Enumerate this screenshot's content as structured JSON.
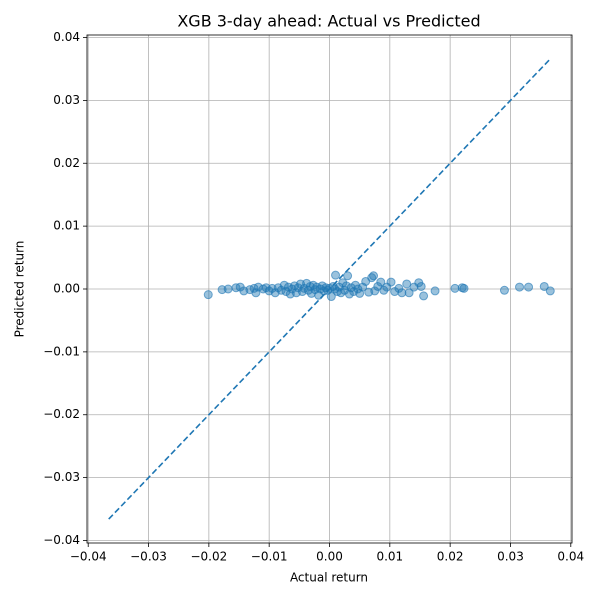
{
  "chart_data": {
    "type": "scatter",
    "title": "XGB 3-day ahead: Actual vs Predicted",
    "x_label": "Actual return",
    "y_label": "Predicted return",
    "grid": true,
    "xlim": [
      -0.0402,
      0.0402
    ],
    "ylim": [
      -0.0404,
      0.0404
    ],
    "xticks": [
      {
        "value": -0.04,
        "label": "−0.04"
      },
      {
        "value": -0.03,
        "label": "−0.03"
      },
      {
        "value": -0.02,
        "label": "−0.02"
      },
      {
        "value": -0.01,
        "label": "−0.01"
      },
      {
        "value": 0,
        "label": "0.00"
      },
      {
        "value": 0.01,
        "label": "0.01"
      },
      {
        "value": 0.02,
        "label": "0.02"
      },
      {
        "value": 0.03,
        "label": "0.03"
      },
      {
        "value": 0.04,
        "label": "0.04"
      }
    ],
    "yticks": [
      {
        "value": -0.04,
        "label": "−0.04"
      },
      {
        "value": -0.03,
        "label": "−0.03"
      },
      {
        "value": -0.02,
        "label": "−0.02"
      },
      {
        "value": -0.01,
        "label": "−0.01"
      },
      {
        "value": 0,
        "label": "0.00"
      },
      {
        "value": 0.01,
        "label": "0.01"
      },
      {
        "value": 0.02,
        "label": "0.02"
      },
      {
        "value": 0.03,
        "label": "0.03"
      },
      {
        "value": 0.04,
        "label": "0.04"
      }
    ],
    "series": [
      {
        "type": "scatter",
        "color": "#1f77b4",
        "x": [
          -0.0201,
          -0.0178,
          -0.0168,
          -0.0155,
          -0.0148,
          -0.0142,
          -0.0132,
          -0.0125,
          -0.0122,
          -0.0118,
          -0.011,
          -0.0105,
          -0.01,
          -0.0095,
          -0.009,
          -0.0085,
          -0.008,
          -0.0075,
          -0.0072,
          -0.0068,
          -0.0065,
          -0.0062,
          -0.0058,
          -0.0055,
          -0.0052,
          -0.0048,
          -0.0045,
          -0.0042,
          -0.0038,
          -0.0035,
          -0.0032,
          -0.003,
          -0.0027,
          -0.0024,
          -0.0021,
          -0.0018,
          -0.0015,
          -0.0012,
          -0.0009,
          -0.0006,
          -0.0003,
          0,
          0.0003,
          0.0006,
          0.0009,
          0.001,
          0.0013,
          0.0016,
          0.0019,
          0.0022,
          0.0025,
          0.0028,
          0.003,
          0.0033,
          0.0036,
          0.004,
          0.0043,
          0.0047,
          0.005,
          0.0055,
          0.006,
          0.0065,
          0.007,
          0.0073,
          0.0075,
          0.008,
          0.0085,
          0.009,
          0.0095,
          0.0102,
          0.0108,
          0.0115,
          0.012,
          0.0128,
          0.0132,
          0.014,
          0.0148,
          0.0152,
          0.0156,
          0.0175,
          0.0208,
          0.022,
          0.0223,
          0.029,
          0.0315,
          0.033,
          0.0356,
          0.0366
        ],
        "values": [
          -0.0009,
          -0.0001,
          0,
          0.0002,
          0.0003,
          -0.0003,
          -0.0001,
          0.0001,
          -0.0006,
          0.0003,
          0,
          0.0002,
          -0.0003,
          0.0001,
          -0.0006,
          0.0002,
          -0.0002,
          0.0006,
          -0.0004,
          0.0003,
          -0.0008,
          0,
          0.0005,
          -0.0006,
          0.0002,
          0.0008,
          -0.0004,
          0.0001,
          0.0009,
          -0.0002,
          0.0004,
          -0.0007,
          0.0006,
          -0.0001,
          0.0003,
          -0.001,
          0,
          0.0005,
          -0.0003,
          0.0002,
          -0.0002,
          0.0001,
          -0.0012,
          0.0004,
          0,
          0.0022,
          -0.0004,
          0.0003,
          -0.0006,
          0.001,
          -0.0002,
          0.0005,
          0.0021,
          -0.0008,
          0.0002,
          -0.0004,
          0.0006,
          0,
          -0.0007,
          0.0003,
          0.0012,
          -0.0005,
          0.0018,
          0.0021,
          -0.0003,
          0.0004,
          0.0011,
          -0.0002,
          0.0003,
          0.0011,
          -0.0004,
          0.0001,
          -0.0006,
          0.0008,
          -0.0006,
          0.0003,
          0.001,
          0.0004,
          -0.0011,
          -0.0003,
          0.0001,
          0.0002,
          0.0001,
          -0.0002,
          0.0003,
          0.0003,
          0.0004,
          -0.0003
        ]
      },
      {
        "type": "line",
        "color": "#1f77b4",
        "dashed": true,
        "x": [
          -0.0366,
          0.0366
        ],
        "values": [
          -0.0366,
          0.0366
        ]
      }
    ]
  }
}
